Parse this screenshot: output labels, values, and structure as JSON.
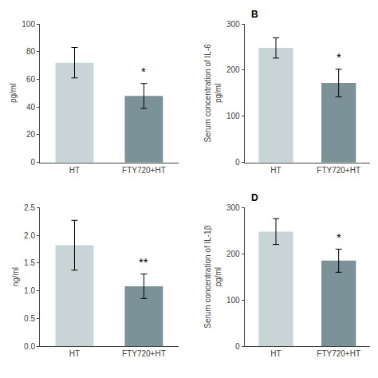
{
  "chart_data": [
    {
      "type": "bar",
      "ylabel": "pg/ml",
      "categories": [
        "HT",
        "FTY720+HT"
      ],
      "values": [
        72,
        48
      ],
      "errors": [
        11,
        9
      ],
      "colors": [
        "#c8d4d6",
        "#7a9298"
      ],
      "ylim": [
        0,
        100
      ],
      "yticks": [
        0,
        20,
        40,
        60,
        80,
        100
      ],
      "grid": false,
      "annotations": [
        {
          "x": "FTY720+HT",
          "text": "*"
        }
      ]
    },
    {
      "type": "bar",
      "title": "B",
      "ylabel": "Serum concentration of IL-6\npg/ml",
      "categories": [
        "HT",
        "FTY720+HT"
      ],
      "values": [
        248,
        172
      ],
      "errors": [
        22,
        30
      ],
      "colors": [
        "#c8d4d6",
        "#7a9298"
      ],
      "ylim": [
        0,
        300
      ],
      "yticks": [
        0,
        100,
        200,
        300
      ],
      "grid": false,
      "annotations": [
        {
          "x": "FTY720+HT",
          "text": "*"
        }
      ]
    },
    {
      "type": "bar",
      "ylabel": "ng/ml",
      "categories": [
        "HT",
        "FTY720+HT"
      ],
      "values": [
        1.82,
        1.08
      ],
      "errors": [
        0.45,
        0.22
      ],
      "colors": [
        "#c8d4d6",
        "#7a9298"
      ],
      "ylim": [
        0,
        2.5
      ],
      "yticks": [
        {
          "value": 0,
          "label": "0.0"
        },
        0.5,
        {
          "value": 1,
          "label": "1.0"
        },
        1.5,
        {
          "value": 2,
          "label": "2.0"
        },
        2.5
      ],
      "grid": false,
      "annotations": [
        {
          "x": "FTY720+HT",
          "text": "**"
        }
      ]
    },
    {
      "type": "bar",
      "title": "D",
      "ylabel": "Serum concentration of IL-1β\npg/ml",
      "categories": [
        "HT",
        "FTY720+HT"
      ],
      "values": [
        248,
        185
      ],
      "errors": [
        28,
        25
      ],
      "colors": [
        "#c8d4d6",
        "#7a9298"
      ],
      "ylim": [
        0,
        300
      ],
      "yticks": [
        0,
        100,
        200,
        300
      ],
      "grid": false,
      "annotations": [
        {
          "x": "FTY720+HT",
          "text": "*"
        }
      ]
    }
  ]
}
